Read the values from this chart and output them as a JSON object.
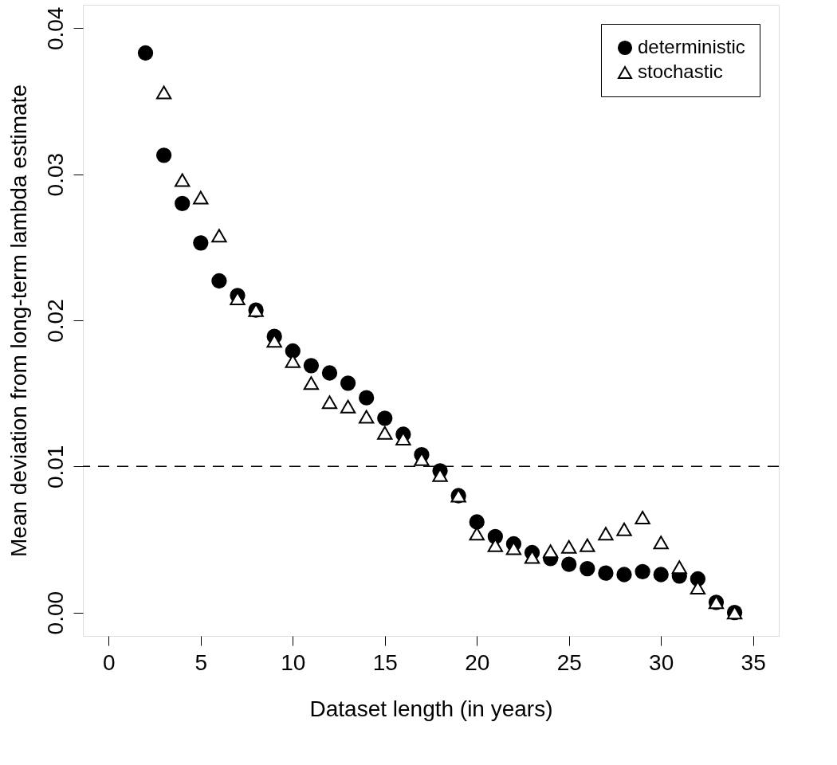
{
  "chart_data": {
    "type": "scatter",
    "xlabel": "Dataset length (in years)",
    "ylabel": "Mean deviation from long-term lambda estimate",
    "xlim": [
      -1.4,
      36.4
    ],
    "xticks": [
      0,
      5,
      10,
      15,
      20,
      25,
      30,
      35
    ],
    "ylim": [
      -0.0016,
      0.0416
    ],
    "yticks": [
      {
        "value": 0,
        "label": "0.00"
      },
      {
        "value": 0.01,
        "label": "0.01"
      },
      {
        "value": 0.02,
        "label": "0.02"
      },
      {
        "value": 0.03,
        "label": "0.03"
      },
      {
        "value": 0.04,
        "label": "0.04"
      }
    ],
    "grid": false,
    "legend": "top right",
    "ref_lines": [
      {
        "axis": "y",
        "value": 0.01,
        "color": "#000000",
        "line_style": "dashed"
      }
    ],
    "series": [
      {
        "name": "deterministic",
        "color": "#000000",
        "marker": "circle",
        "x": [
          2,
          3,
          4,
          5,
          6,
          7,
          8,
          9,
          10,
          11,
          12,
          13,
          14,
          15,
          16,
          17,
          18,
          19,
          20,
          21,
          22,
          23,
          24,
          25,
          26,
          27,
          28,
          29,
          30,
          31,
          32,
          33,
          34
        ],
        "values": [
          0.0383,
          0.0313,
          0.028,
          0.0253,
          0.0227,
          0.0217,
          0.0207,
          0.0189,
          0.0179,
          0.0169,
          0.0164,
          0.0157,
          0.0147,
          0.0133,
          0.0122,
          0.0108,
          0.0097,
          0.008,
          0.0062,
          0.0052,
          0.0047,
          0.0041,
          0.0037,
          0.0033,
          0.003,
          0.0027,
          0.0026,
          0.0028,
          0.0026,
          0.0025,
          0.0023,
          0.0007,
          0.0
        ]
      },
      {
        "name": "stochastic",
        "color": "#000000",
        "marker": "triangle",
        "x": [
          3,
          4,
          5,
          6,
          7,
          8,
          9,
          10,
          11,
          12,
          13,
          14,
          15,
          16,
          17,
          18,
          19,
          20,
          21,
          22,
          23,
          24,
          25,
          26,
          27,
          28,
          29,
          30,
          31,
          32,
          33,
          34
        ],
        "values": [
          0.0356,
          0.0296,
          0.0284,
          0.0258,
          0.0215,
          0.0207,
          0.0186,
          0.0172,
          0.0157,
          0.0144,
          0.0141,
          0.0134,
          0.0123,
          0.0119,
          0.0105,
          0.0094,
          0.008,
          0.0054,
          0.0046,
          0.0044,
          0.0038,
          0.0042,
          0.0045,
          0.0046,
          0.0054,
          0.0057,
          0.0065,
          0.0048,
          0.0031,
          0.0017,
          0.0007,
          0.0
        ]
      }
    ]
  }
}
